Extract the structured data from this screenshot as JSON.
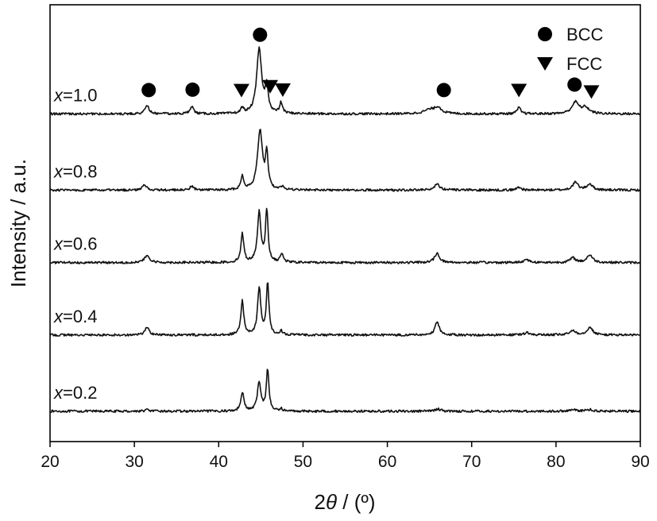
{
  "chart_data": {
    "type": "line",
    "title": "",
    "xlabel_num": "2",
    "xlabel_sym": "θ",
    "xlabel_unit": " / (º)",
    "ylabel": "Intensity / a.u.",
    "xlim": [
      20,
      90
    ],
    "x_ticks": [
      20,
      30,
      40,
      50,
      60,
      70,
      80,
      90
    ],
    "grid": false,
    "legend": {
      "placement": "top-right",
      "entries": [
        {
          "name": "BCC",
          "marker": "circle"
        },
        {
          "name": "FCC",
          "marker": "triangle-down"
        }
      ]
    },
    "series": [
      {
        "var": "x",
        "value": "=0.2",
        "baseline": 0.2,
        "peaks": [
          [
            31.5,
            0.02,
            0.3
          ],
          [
            42.8,
            0.25,
            0.22
          ],
          [
            44.8,
            0.38,
            0.25
          ],
          [
            45.8,
            0.55,
            0.18
          ],
          [
            47.4,
            0.03,
            0.2
          ],
          [
            66.0,
            0.03,
            0.4
          ],
          [
            82.0,
            0.02,
            0.5
          ],
          [
            84.0,
            0.02,
            0.5
          ]
        ]
      },
      {
        "var": "x",
        "value": "=0.4",
        "baseline": 1.2,
        "peaks": [
          [
            31.5,
            0.1,
            0.3
          ],
          [
            42.8,
            0.45,
            0.2
          ],
          [
            44.8,
            0.62,
            0.22
          ],
          [
            45.8,
            0.68,
            0.18
          ],
          [
            47.4,
            0.05,
            0.2
          ],
          [
            65.9,
            0.17,
            0.3
          ],
          [
            76.6,
            0.03,
            0.4
          ],
          [
            82.0,
            0.06,
            0.4
          ],
          [
            84.0,
            0.1,
            0.4
          ]
        ]
      },
      {
        "var": "x",
        "value": "=0.6",
        "baseline": 2.15,
        "peaks": [
          [
            31.5,
            0.09,
            0.35
          ],
          [
            42.8,
            0.38,
            0.2
          ],
          [
            44.8,
            0.65,
            0.25
          ],
          [
            45.7,
            0.68,
            0.18
          ],
          [
            47.5,
            0.12,
            0.2
          ],
          [
            65.9,
            0.12,
            0.35
          ],
          [
            76.5,
            0.04,
            0.4
          ],
          [
            82.0,
            0.06,
            0.4
          ],
          [
            84.0,
            0.1,
            0.4
          ]
        ]
      },
      {
        "var": "x",
        "value": "=0.8",
        "baseline": 3.1,
        "peaks": [
          [
            31.2,
            0.07,
            0.3
          ],
          [
            36.8,
            0.05,
            0.25
          ],
          [
            42.8,
            0.18,
            0.2
          ],
          [
            44.9,
            0.78,
            0.35
          ],
          [
            45.7,
            0.45,
            0.18
          ],
          [
            47.5,
            0.04,
            0.2
          ],
          [
            65.9,
            0.08,
            0.4
          ],
          [
            75.6,
            0.04,
            0.3
          ],
          [
            82.3,
            0.1,
            0.4
          ],
          [
            84.0,
            0.08,
            0.4
          ]
        ]
      },
      {
        "var": "x",
        "value": "=1.0",
        "baseline": 4.1,
        "peaks": [
          [
            31.5,
            0.1,
            0.3
          ],
          [
            36.8,
            0.1,
            0.25
          ],
          [
            42.8,
            0.07,
            0.2
          ],
          [
            44.8,
            0.85,
            0.35
          ],
          [
            45.7,
            0.35,
            0.2
          ],
          [
            47.4,
            0.14,
            0.2
          ],
          [
            65.0,
            0.05,
            0.8
          ],
          [
            66.0,
            0.08,
            0.5
          ],
          [
            75.6,
            0.08,
            0.25
          ],
          [
            82.3,
            0.15,
            0.5
          ],
          [
            83.5,
            0.08,
            0.5
          ]
        ]
      }
    ],
    "annotations": {
      "bcc_markers": [
        31.7,
        36.9,
        44.9,
        66.7,
        82.2
      ],
      "fcc_markers": [
        42.7,
        46.1,
        47.6,
        75.6,
        84.2
      ]
    }
  }
}
